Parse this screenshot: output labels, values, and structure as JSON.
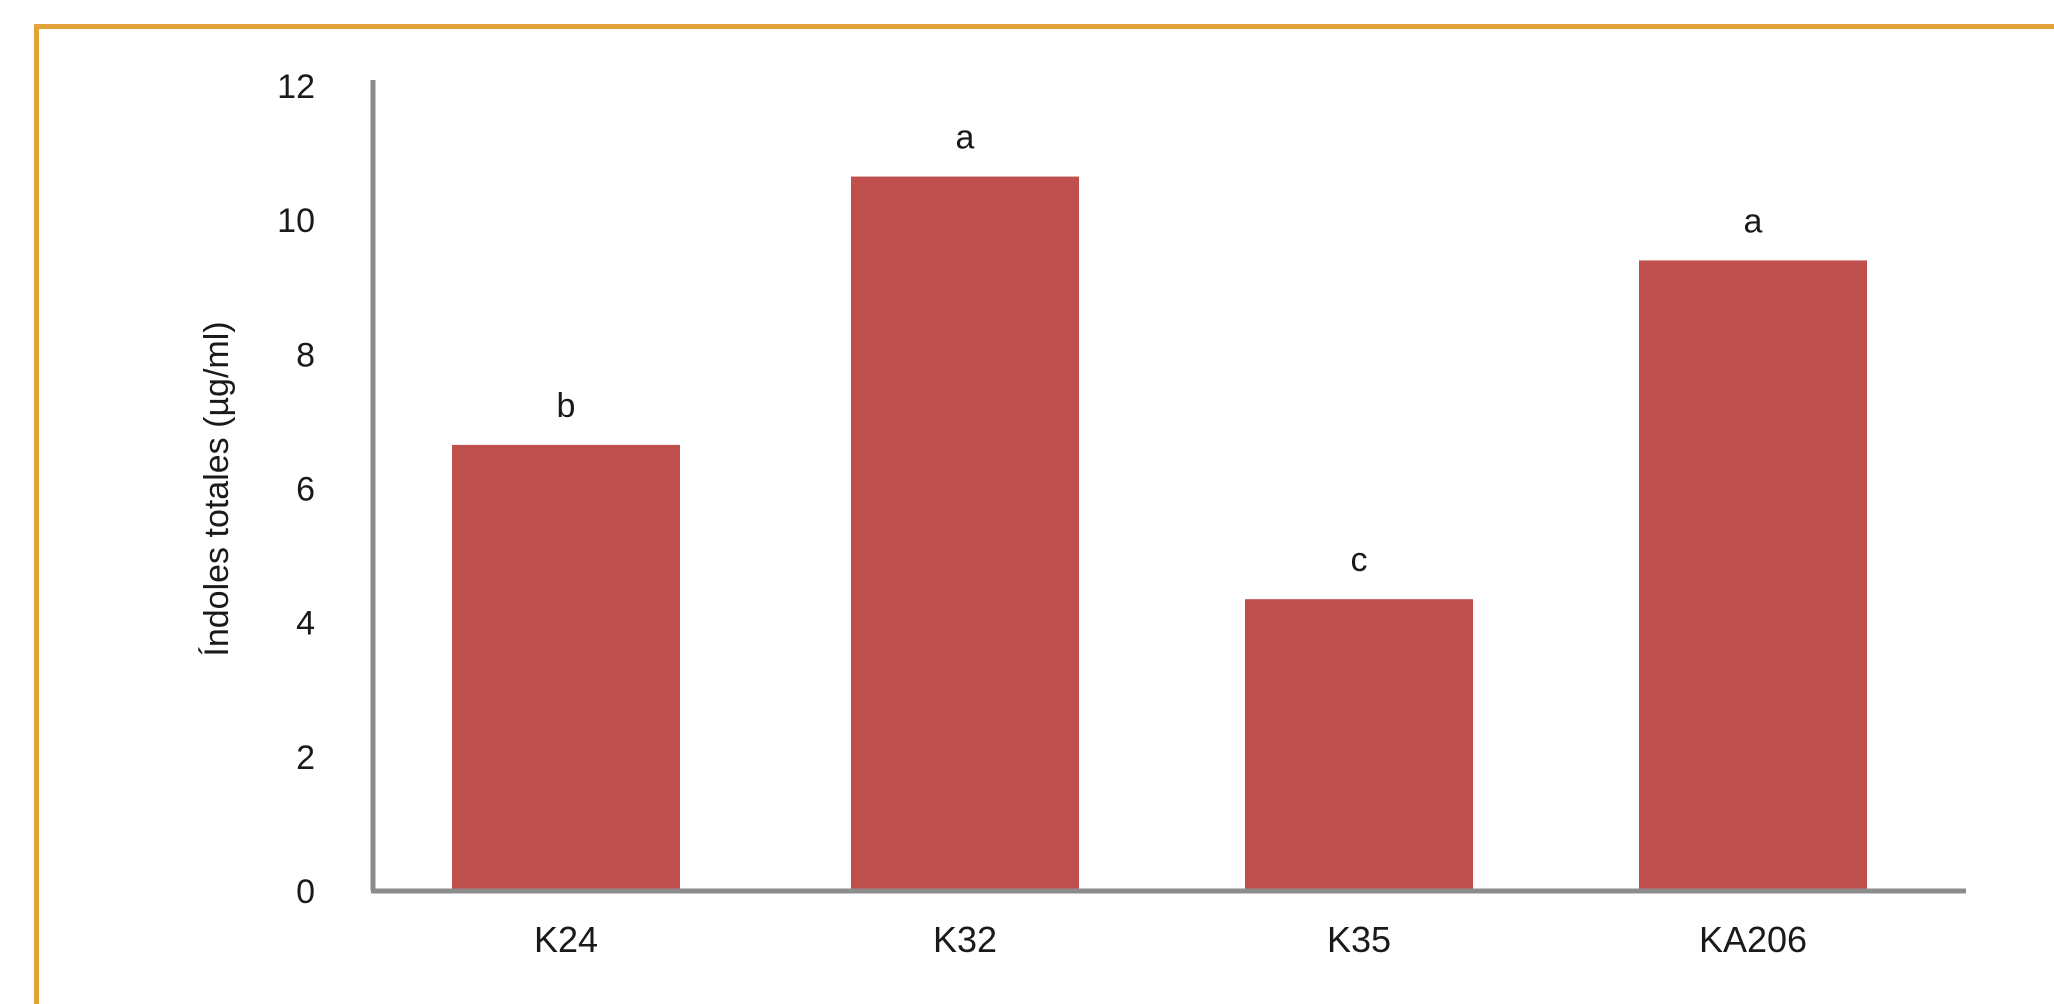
{
  "chart_data": {
    "type": "bar",
    "categories": [
      "K24",
      "K32",
      "K35",
      "KA206"
    ],
    "values": [
      6.65,
      10.65,
      4.35,
      9.4
    ],
    "bar_labels": [
      "b",
      "a",
      "c",
      "a"
    ],
    "title": "",
    "xlabel": "",
    "ylabel": "Índoles totales (µg/ml)",
    "ylim": [
      0,
      12
    ],
    "yticks": [
      "0",
      "2",
      "4",
      "6",
      "8",
      "10",
      "12"
    ],
    "grid": false,
    "legend": "none",
    "bar_color": "#c0504d",
    "axis_color": "#8c8c8c",
    "frame_color": "#e2a33b"
  }
}
